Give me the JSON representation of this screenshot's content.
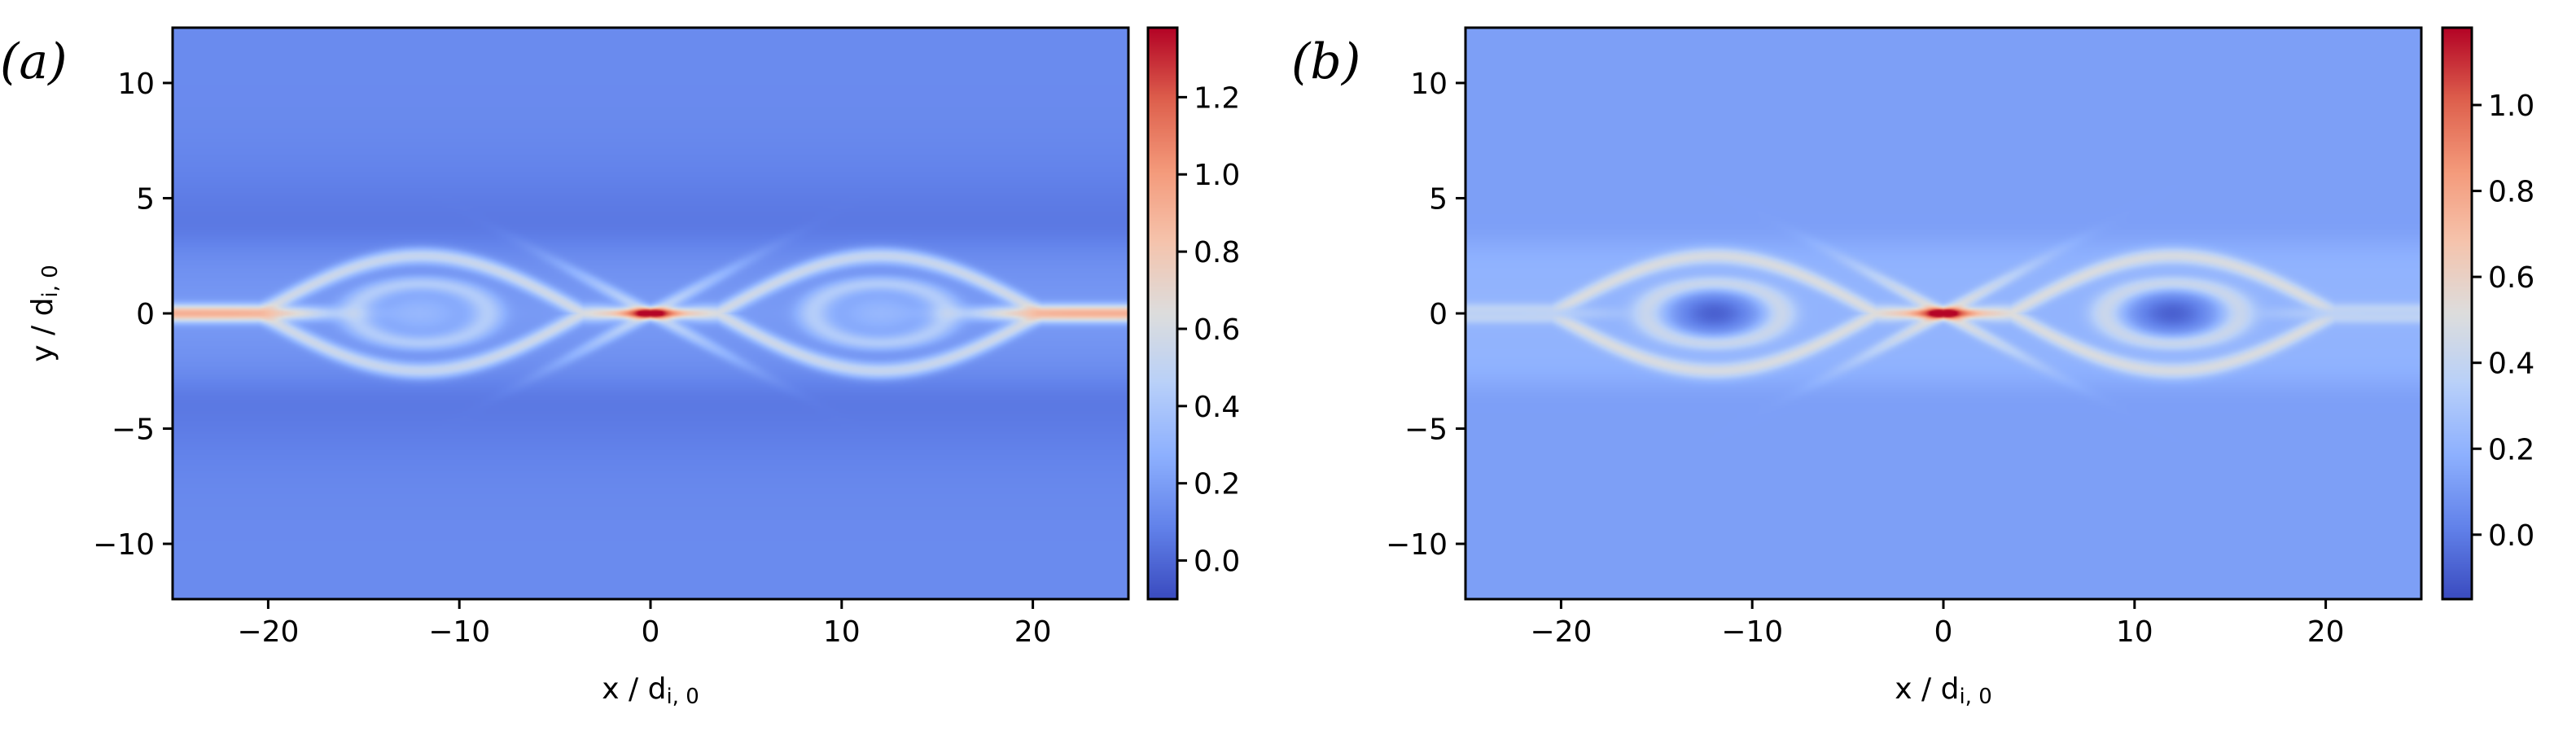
{
  "chart_data": [
    {
      "type": "heatmap",
      "panel_label": "(a)",
      "xlabel": "x / d",
      "xlabel_sub": "i, 0",
      "ylabel": "y / d",
      "ylabel_sub": "i, 0",
      "xlim": [
        -25,
        25
      ],
      "ylim": [
        -12.4,
        12.4
      ],
      "x_ticks": [
        -20,
        -10,
        0,
        10,
        20
      ],
      "x_tick_labels": [
        "−20",
        "−10",
        "0",
        "10",
        "20"
      ],
      "y_ticks": [
        -10,
        -5,
        0,
        5,
        10
      ],
      "y_tick_labels": [
        "−10",
        "−5",
        "0",
        "5",
        "10"
      ],
      "colormap": "coolwarm",
      "colorbar": {
        "vmin": -0.1,
        "vmax": 1.38,
        "ticks": [
          0.0,
          0.2,
          0.4,
          0.6,
          0.8,
          1.0,
          1.2
        ],
        "tick_labels": [
          "0.0",
          "0.2",
          "0.4",
          "0.6",
          "0.8",
          "1.0",
          "1.2"
        ]
      },
      "field": {
        "background": 0.05,
        "far_background": 0.12,
        "sheet_dip": -0.08,
        "sheet_halfwidth": 3.2,
        "xpoint_peak": 1.38,
        "edge_peak": 0.95,
        "island_centers": [
          -12,
          12
        ],
        "separatrix_amplitude": 2.5,
        "island_core": 0.32,
        "separatrix_value": 0.45
      },
      "grid": false
    },
    {
      "type": "heatmap",
      "panel_label": "(b)",
      "xlabel": "x / d",
      "xlabel_sub": "i, 0",
      "ylabel": "",
      "ylabel_sub": "",
      "xlim": [
        -25,
        25
      ],
      "ylim": [
        -12.4,
        12.4
      ],
      "x_ticks": [
        -20,
        -10,
        0,
        10,
        20
      ],
      "x_tick_labels": [
        "−20",
        "−10",
        "0",
        "10",
        "20"
      ],
      "y_ticks": [
        -10,
        -5,
        0,
        5,
        10
      ],
      "y_tick_labels": [
        "−10",
        "−5",
        "0",
        "5",
        "10"
      ],
      "colormap": "coolwarm",
      "colorbar": {
        "vmin": -0.15,
        "vmax": 1.18,
        "ticks": [
          0.0,
          0.2,
          0.4,
          0.6,
          0.8,
          1.0
        ],
        "tick_labels": [
          "0.0",
          "0.2",
          "0.4",
          "0.6",
          "0.8",
          "1.0"
        ]
      },
      "field": {
        "background": 0.12,
        "far_background": 0.12,
        "sheet_dip": -0.06,
        "sheet_halfwidth": 3.2,
        "xpoint_peak": 1.18,
        "edge_peak": 0.35,
        "island_centers": [
          -12,
          12
        ],
        "separatrix_amplitude": 2.5,
        "island_core": -0.12,
        "separatrix_value": 0.42
      },
      "grid": false
    }
  ]
}
